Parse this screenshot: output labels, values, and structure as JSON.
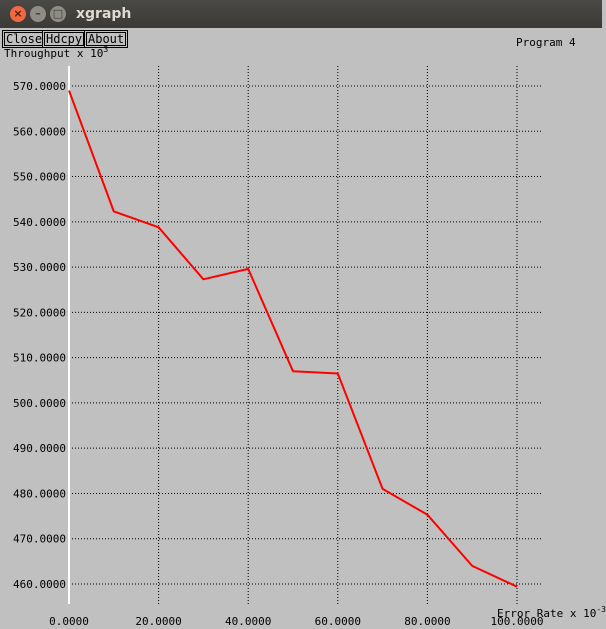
{
  "window": {
    "title": "xgraph",
    "close_glyph": "×",
    "min_glyph": "–",
    "max_glyph": "□"
  },
  "toolbar": {
    "close_label": "Close",
    "hdcpy_label": "Hdcpy",
    "about_label": "About"
  },
  "chart_data": {
    "type": "line",
    "title": "",
    "xlabel": "Error Rate x 10",
    "xlabel_exponent": "-3",
    "ylabel": "Throughput x 10",
    "ylabel_exponent": "3",
    "xlim": [
      0,
      100
    ],
    "ylim": [
      455,
      575
    ],
    "grid": true,
    "legend": "top-right",
    "x_ticks": [
      "0.0000",
      "20.0000",
      "40.0000",
      "60.0000",
      "80.0000",
      "100.0000"
    ],
    "y_ticks": [
      "570.0000",
      "560.0000",
      "550.0000",
      "540.0000",
      "530.0000",
      "520.0000",
      "510.0000",
      "500.0000",
      "490.0000",
      "480.0000",
      "470.0000",
      "460.0000"
    ],
    "series": [
      {
        "name": "Program 4",
        "color": "#ff0000",
        "x": [
          0,
          10,
          20,
          30,
          40,
          50,
          60,
          70,
          80,
          90,
          100
        ],
        "y": [
          569,
          542.3,
          538.8,
          527.3,
          529.6,
          507,
          506.5,
          481,
          475.3,
          464,
          459.4
        ]
      }
    ]
  }
}
